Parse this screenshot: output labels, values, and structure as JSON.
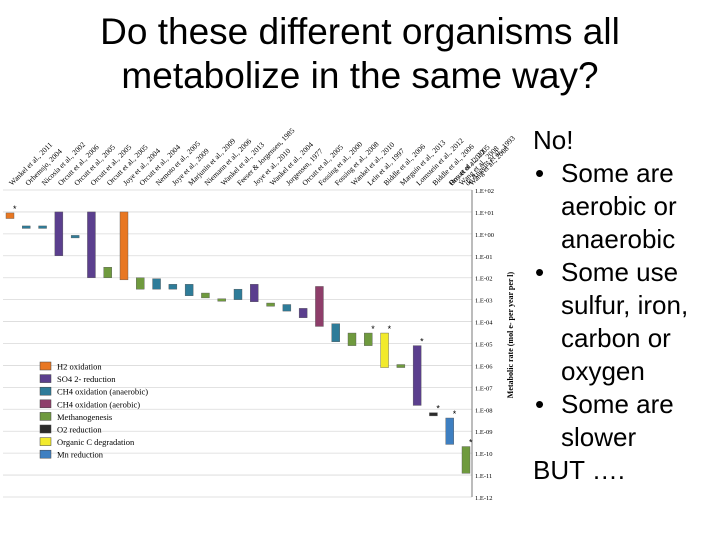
{
  "slide": {
    "title_line1": "Do these different organisms all",
    "title_line2": "metabolize in the same way?",
    "bullets_lead": "No!",
    "bullets": [
      "Some are aerobic or anaerobic",
      "Some use sulfur, iron, carbon or oxygen",
      "Some are slower"
    ],
    "bullets_tail": "BUT …."
  },
  "chart_data": {
    "type": "bar",
    "ylabel": "Metabolic rate (mol e- per year per l)",
    "y_scale": "log",
    "ylim": [
      1e-12,
      100
    ],
    "yticks": [
      "1.E+02",
      "1.E+01",
      "1.E+00",
      "1.E-01",
      "1.E-02",
      "1.E-03",
      "1.E-04",
      "1.E-05",
      "1.E-06",
      "1.E-07",
      "1.E-08",
      "1.E-09",
      "1.E-10",
      "1.E-11",
      "1.E-12"
    ],
    "legend": [
      {
        "name": "H2 oxidation",
        "color": "#E87722"
      },
      {
        "name": "SO4 2- reduction",
        "color": "#5B3F8E"
      },
      {
        "name": "CH4 oxidation (anaerobic)",
        "color": "#2E7C99"
      },
      {
        "name": "CH4 oxidation (aerobic)",
        "color": "#8E3E6A"
      },
      {
        "name": "Methanogenesis",
        "color": "#6F9A3E"
      },
      {
        "name": "O2 reduction",
        "color": "#2B2B2B"
      },
      {
        "name": "Organic C degradation",
        "color": "#F2EA2C"
      },
      {
        "name": "Mn reduction",
        "color": "#3E7FC1"
      }
    ],
    "legend_position": "bottom-left",
    "grid": true,
    "studies": [
      {
        "label": "Wankel et al., 2011",
        "low": 5.0,
        "high": 9.0,
        "color": "#E87722",
        "star": true
      },
      {
        "label": "Orhemsjo, 2004",
        "low": 2.0,
        "high": 2.3,
        "color": "#2E7C99",
        "star": false
      },
      {
        "label": "Nicosia et al., 2002",
        "low": 2.0,
        "high": 2.3,
        "color": "#2E7C99",
        "star": false
      },
      {
        "label": "Orcutt et al., 2006",
        "low": 0.1,
        "high": 10.0,
        "color": "#5B3F8E",
        "star": false
      },
      {
        "label": "Orcutt et al., 2005",
        "low": 0.7,
        "high": 0.85,
        "color": "#2E7C99",
        "star": false
      },
      {
        "label": "Orcutt et al., 2005",
        "low": 0.01,
        "high": 10.0,
        "color": "#5B3F8E",
        "star": false
      },
      {
        "label": "Orcutt et al., 2005",
        "low": 0.01,
        "high": 0.03,
        "color": "#6F9A3E",
        "star": false
      },
      {
        "label": "Joye et al., 2004",
        "low": 0.008,
        "high": 10.0,
        "color": "#E87722",
        "star": false
      },
      {
        "label": "Orcutt et al., 2004",
        "low": 0.003,
        "high": 0.01,
        "color": "#6F9A3E",
        "star": false
      },
      {
        "label": "Nemoto et al., 2005",
        "low": 0.003,
        "high": 0.009,
        "color": "#2E7C99",
        "star": false
      },
      {
        "label": "Joye et al., 2009",
        "low": 0.003,
        "high": 0.005,
        "color": "#2E7C99",
        "star": false
      },
      {
        "label": "Marjunin et al., 2009",
        "low": 0.0015,
        "high": 0.005,
        "color": "#2E7C99",
        "star": false
      },
      {
        "label": "Niemann et al., 2006",
        "low": 0.0012,
        "high": 0.002,
        "color": "#6F9A3E",
        "star": false
      },
      {
        "label": "Wankel et al., 2013",
        "low": 0.0009,
        "high": 0.0011,
        "color": "#6F9A3E",
        "star": false
      },
      {
        "label": "Feeser & Jorgensen, 1985",
        "low": 0.001,
        "high": 0.003,
        "color": "#2E7C99",
        "star": false
      },
      {
        "label": "Joye et al., 2010",
        "low": 0.0008,
        "high": 0.005,
        "color": "#5B3F8E",
        "star": false
      },
      {
        "label": "Wankel et al., 2004",
        "low": 0.0005,
        "high": 0.0007,
        "color": "#6F9A3E",
        "star": false
      },
      {
        "label": "Jorgensen, 1977",
        "low": 0.0003,
        "high": 0.0006,
        "color": "#2E7C99",
        "star": false
      },
      {
        "label": "Orcutt et al., 2005",
        "low": 0.00015,
        "high": 0.0004,
        "color": "#5B3F8E",
        "star": false
      },
      {
        "label": "Fossing et al., 2000",
        "low": 6e-05,
        "high": 0.004,
        "color": "#8E3E6A",
        "star": false
      },
      {
        "label": "Fossing et al., 2008",
        "low": 1.2e-05,
        "high": 8e-05,
        "color": "#2E7C99",
        "star": false
      },
      {
        "label": "Wankel et al., 2010",
        "low": 8e-06,
        "high": 3e-05,
        "color": "#6F9A3E",
        "star": false
      },
      {
        "label": "Lein et al., 1997",
        "low": 8e-06,
        "high": 3e-05,
        "color": "#6F9A3E",
        "star": true
      },
      {
        "label": "Biddle et al., 2006",
        "low": 8e-07,
        "high": 3e-05,
        "color": "#F2EA2C",
        "star": true
      },
      {
        "label": "Marguin et al., 2013",
        "low": 8e-07,
        "high": 1.1e-06,
        "color": "#6F9A3E",
        "star": false
      },
      {
        "label": "Lomstein et al., 2012",
        "low": 1.5e-08,
        "high": 8e-06,
        "color": "#5B3F8E",
        "star": true
      },
      {
        "label": "Biddle et al., 2006",
        "low": 5e-09,
        "high": 7e-09,
        "color": "#2B2B2B",
        "star": true
      },
      {
        "label": "Orcutt et al., 2005",
        "low": 2.5e-10,
        "high": 4e-09,
        "color": "#3E7FC1",
        "star": true
      },
      {
        "label": "de Angelis et al., 1993",
        "low": 1.2e-11,
        "high": 2e-10,
        "color": "#6F9A3E",
        "star": true
      }
    ],
    "extra_top_labels": [
      "Roy et al., 2012",
      "Wang et al., 2008",
      "Wang et al., 2008"
    ]
  }
}
